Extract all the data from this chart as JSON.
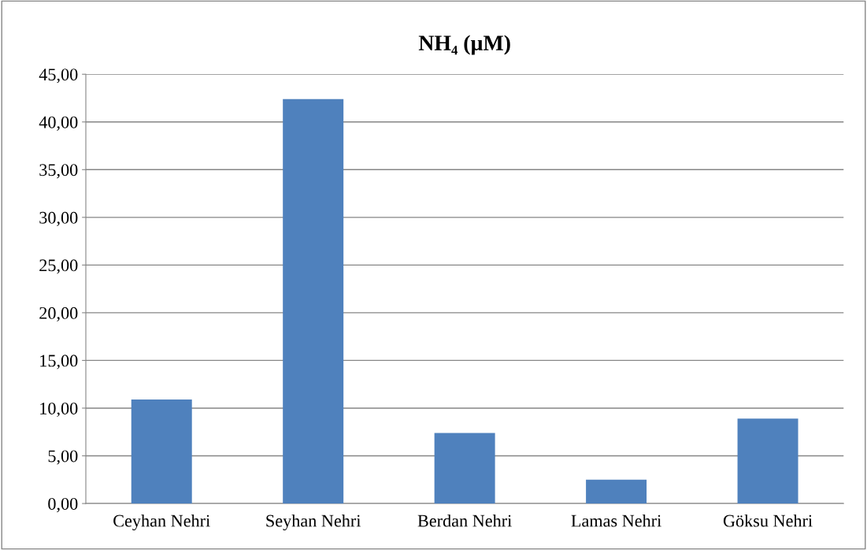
{
  "chart_data": {
    "type": "bar",
    "title": "NH₄ (µM)",
    "categories": [
      "Ceyhan Nehri",
      "Seyhan Nehri",
      "Berdan Nehri",
      "Lamas Nehri",
      "Göksu Nehri"
    ],
    "values": [
      10.9,
      42.4,
      7.4,
      2.5,
      8.9
    ],
    "color": "#4f81bd",
    "ylim": [
      0,
      45
    ],
    "yticks": [
      {
        "value": 0,
        "label": "0,00"
      },
      {
        "value": 5,
        "label": "5,00"
      },
      {
        "value": 10,
        "label": "10,00"
      },
      {
        "value": 15,
        "label": "15,00"
      },
      {
        "value": 20,
        "label": "20,00"
      },
      {
        "value": 25,
        "label": "25,00"
      },
      {
        "value": 30,
        "label": "30,00"
      },
      {
        "value": 35,
        "label": "35,00"
      },
      {
        "value": 40,
        "label": "40,00"
      },
      {
        "value": 45,
        "label": "45,00"
      }
    ],
    "grid": "y",
    "legend": false
  }
}
